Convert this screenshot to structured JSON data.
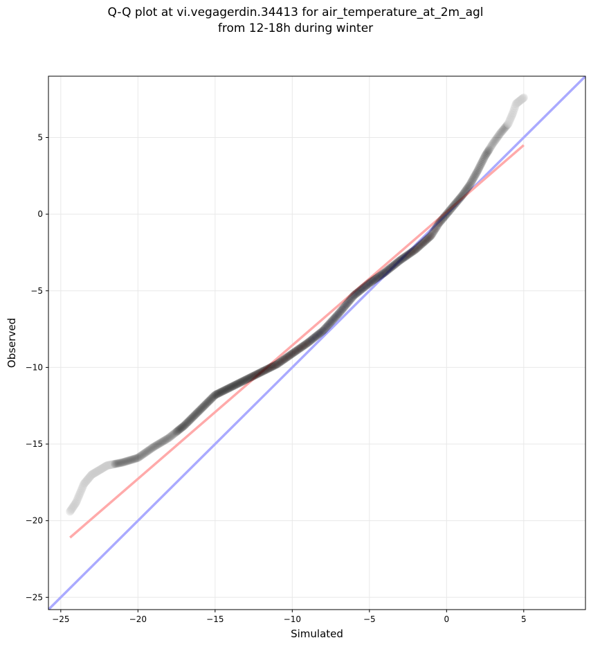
{
  "chart_data": {
    "type": "scatter",
    "title_line1": "Q-Q plot at vi.vegagerdin.34413 for air_temperature_at_2m_agl",
    "title_line2": "from 12-18h during winter",
    "xlabel": "Simulated",
    "ylabel": "Observed",
    "xlim": [
      -25.8,
      9.0
    ],
    "ylim": [
      -25.8,
      9.0
    ],
    "grid": true,
    "xticks": [
      -25,
      -20,
      -15,
      -10,
      -5,
      0,
      5
    ],
    "yticks": [
      -25,
      -20,
      -15,
      -10,
      -5,
      0,
      5
    ],
    "xtick_labels": [
      "−25",
      "−20",
      "−15",
      "−10",
      "−5",
      "0",
      "5"
    ],
    "ytick_labels": [
      "−25",
      "−20",
      "−15",
      "−10",
      "−5",
      "0",
      "5"
    ],
    "quantile_curve": {
      "x": [
        -24.4,
        -24.0,
        -23.5,
        -23.0,
        -22.0,
        -21.0,
        -20.0,
        -19.0,
        -18.0,
        -17.0,
        -16.0,
        -15.0,
        -14.0,
        -13.0,
        -12.0,
        -11.0,
        -10.0,
        -9.0,
        -8.0,
        -7.0,
        -6.0,
        -5.0,
        -4.0,
        -3.0,
        -2.0,
        -1.0,
        -0.5,
        0.0,
        0.5,
        1.0,
        1.5,
        2.0,
        2.5,
        3.0,
        3.5,
        4.0,
        4.3,
        4.5,
        5.0
      ],
      "y": [
        -19.4,
        -18.8,
        -17.6,
        -17.0,
        -16.4,
        -16.2,
        -15.9,
        -15.2,
        -14.6,
        -13.8,
        -12.8,
        -11.8,
        -11.3,
        -10.8,
        -10.3,
        -9.8,
        -9.1,
        -8.4,
        -7.6,
        -6.5,
        -5.3,
        -4.5,
        -3.8,
        -3.0,
        -2.3,
        -1.4,
        -0.6,
        0.0,
        0.6,
        1.2,
        1.9,
        2.8,
        3.8,
        4.6,
        5.3,
        5.9,
        6.6,
        7.2,
        7.6
      ]
    },
    "series": [
      {
        "type": "line",
        "color": "#aaaaff",
        "x": [
          -25.8,
          9.0
        ],
        "y": [
          -25.8,
          9.0
        ]
      },
      {
        "type": "line",
        "color": "#ffaaaa",
        "x": [
          -24.4,
          5.0
        ],
        "y": [
          -21.1,
          4.5
        ]
      }
    ],
    "marker_colors": {
      "tail": "#cccccc",
      "middle": "#000000",
      "center_overlay": "#00008b",
      "center_overlay_red": "#8b0000"
    }
  }
}
